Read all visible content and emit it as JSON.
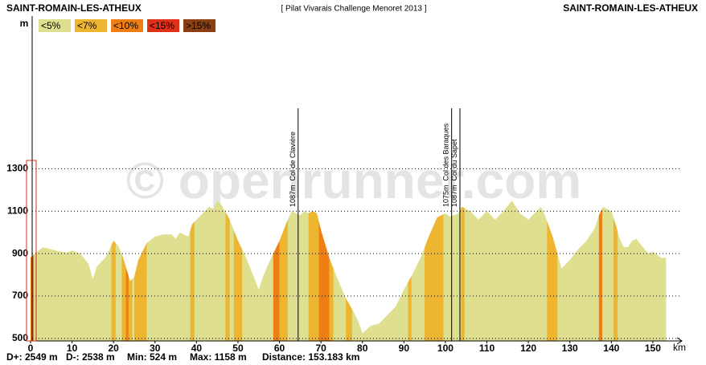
{
  "chart_data": {
    "type": "area",
    "title": "[ Pilat Vivarais Challenge Menoret 2013 ]",
    "start_label": "SAINT-ROMAIN-LES-ATHEUX",
    "end_label": "SAINT-ROMAIN-LES-ATHEUX",
    "watermark": "© openrunner.com",
    "y_unit": "m",
    "x_unit": "km",
    "legend": [
      {
        "name": "<5%",
        "color": "#dfdf90"
      },
      {
        "name": "<7%",
        "color": "#eeb530"
      },
      {
        "name": "<10%",
        "color": "#ee7f14"
      },
      {
        "name": "<15%",
        "color": "#e03018"
      },
      {
        "name": ">15%",
        "color": "#8b3f12"
      }
    ],
    "x": [
      0,
      1,
      3,
      5,
      7,
      9,
      10,
      12,
      14,
      15,
      16,
      18,
      20,
      21,
      22,
      24,
      25,
      26,
      28,
      30,
      32,
      34,
      35,
      36,
      38,
      39,
      41,
      43,
      44,
      45,
      46,
      48,
      50,
      52,
      54,
      55,
      56,
      58,
      60,
      62,
      63,
      64,
      65,
      66,
      67,
      68,
      69,
      70,
      72,
      74,
      76,
      78,
      79,
      80,
      82,
      84,
      86,
      88,
      90,
      92,
      94,
      96,
      98,
      100,
      101,
      103,
      104,
      106,
      108,
      110,
      112,
      114,
      116,
      118,
      120,
      122,
      123,
      124,
      126,
      128,
      130,
      132,
      134,
      136,
      137,
      138,
      139,
      140,
      141,
      142,
      143,
      144,
      145,
      146,
      148,
      149,
      150,
      152,
      153.183
    ],
    "values": [
      880,
      900,
      930,
      920,
      910,
      905,
      915,
      900,
      850,
      780,
      840,
      880,
      960,
      940,
      900,
      770,
      790,
      870,
      950,
      980,
      990,
      990,
      970,
      1000,
      980,
      1040,
      1080,
      1120,
      1110,
      1150,
      1130,
      1060,
      960,
      880,
      780,
      730,
      790,
      880,
      960,
      1060,
      1100,
      1090,
      1080,
      1100,
      1090,
      1100,
      1090,
      1010,
      880,
      780,
      690,
      620,
      580,
      524,
      560,
      570,
      610,
      650,
      730,
      800,
      880,
      980,
      1070,
      1090,
      1075,
      1087,
      1120,
      1100,
      1060,
      1100,
      1060,
      1100,
      1150,
      1090,
      1060,
      1100,
      1120,
      1080,
      970,
      830,
      870,
      920,
      960,
      1020,
      1080,
      1120,
      1110,
      1100,
      1040,
      970,
      930,
      930,
      960,
      970,
      920,
      900,
      910,
      880,
      880
    ],
    "segments": [
      [
        0,
        0.8,
        2
      ],
      [
        19.5,
        20.5,
        1
      ],
      [
        22,
        24.5,
        1
      ],
      [
        23,
        23.6,
        2
      ],
      [
        25,
        28,
        1
      ],
      [
        38.5,
        39.5,
        1
      ],
      [
        47,
        48,
        1
      ],
      [
        49,
        51,
        1
      ],
      [
        58.5,
        60,
        2
      ],
      [
        60,
        62,
        1
      ],
      [
        67,
        73,
        1
      ],
      [
        69.5,
        72,
        2
      ],
      [
        76,
        77.5,
        1
      ],
      [
        91,
        91.8,
        1
      ],
      [
        95,
        99.5,
        1
      ],
      [
        103.8,
        104.6,
        1
      ],
      [
        124.5,
        127,
        1
      ],
      [
        137,
        137.8,
        2
      ],
      [
        140.5,
        141.5,
        1
      ]
    ],
    "annotations": [
      {
        "x": 64.5,
        "elevation": "1087m",
        "name": "Col de Clavière"
      },
      {
        "x": 101.5,
        "elevation": "1075m",
        "name": "Col des Baraques"
      },
      {
        "x": 103.5,
        "elevation": "1087m",
        "name": "Col du Sapet"
      }
    ],
    "xlim": [
      0,
      157
    ],
    "ylim": [
      488,
      2020
    ],
    "xticks": [
      0,
      10,
      20,
      30,
      40,
      50,
      60,
      70,
      80,
      90,
      100,
      110,
      120,
      130,
      140,
      150
    ],
    "yticks": [
      500,
      700,
      900,
      1100,
      1300
    ],
    "grid": true,
    "stats": [
      "D+: 2549 m",
      "D-: 2538 m",
      "Min: 524 m",
      "Max: 1158 m",
      "Distance: 153.183 km"
    ]
  }
}
